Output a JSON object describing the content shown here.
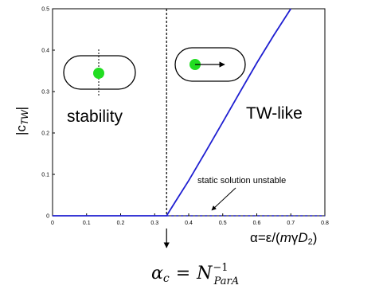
{
  "chart_data": {
    "type": "line",
    "xlabel": {
      "prefix": "α=ε/(",
      "m": "m",
      "gamma": "γ",
      "D": "D",
      "sub": "2",
      "suffix": ")"
    },
    "ylabel": {
      "prefix": "|c",
      "sub": "TW",
      "suffix": "|"
    },
    "xlim": [
      0,
      0.8
    ],
    "ylim": [
      0,
      0.5
    ],
    "xticks": [
      "0",
      "0.1",
      "0.2",
      "0.3",
      "0.4",
      "0.5",
      "0.6",
      "0.7",
      "0.8"
    ],
    "yticks": [
      "0",
      "0.1",
      "0.2",
      "0.3",
      "0.4",
      "0.5"
    ],
    "critical_alpha": 0.335,
    "series": [
      {
        "style": "solid",
        "color": "#1f1fd1",
        "x": [
          0,
          0.335,
          0.36,
          0.4,
          0.45,
          0.5,
          0.55,
          0.6,
          0.65,
          0.7
        ],
        "y": [
          0,
          0,
          0.033,
          0.085,
          0.155,
          0.226,
          0.298,
          0.369,
          0.436,
          0.5
        ]
      },
      {
        "style": "dashed",
        "color": "#1f1fd1",
        "x": [
          0.335,
          0.8
        ],
        "y": [
          0,
          0
        ]
      }
    ],
    "annotations": {
      "stability": "stability",
      "tw_like": "TW-like",
      "unstable": "static solution unstable"
    },
    "critical_label": {
      "alpha": "α",
      "alpha_sub": "c",
      "equals": "=",
      "N": "N",
      "N_sub": "ParA",
      "N_sup": "−1"
    },
    "colors": {
      "curve": "#1f1fd1",
      "dot": "#22dd22",
      "axis": "#000000"
    }
  }
}
